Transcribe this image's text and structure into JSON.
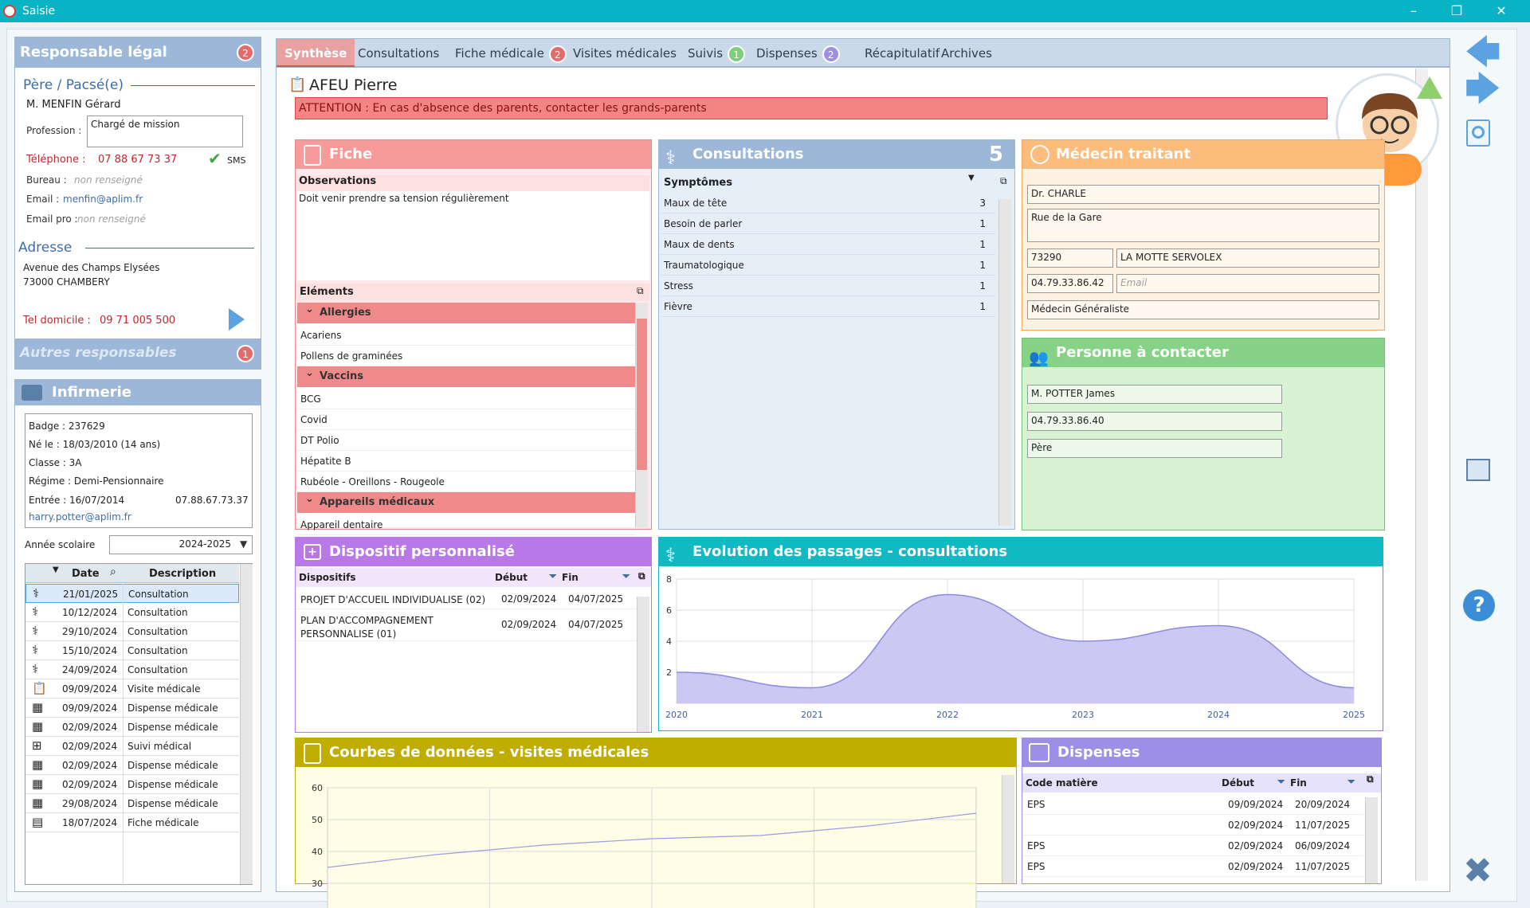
{
  "window": {
    "title": "Saisie",
    "minimize": "–",
    "restore": "❐",
    "close": "✕"
  },
  "tabs": [
    {
      "label": "Synthèse",
      "badge": null
    },
    {
      "label": "Consultations",
      "badge": null
    },
    {
      "label": "Fiche médicale",
      "badge": "2"
    },
    {
      "label": "Visites médicales",
      "badge": null
    },
    {
      "label": "Suivis",
      "badge": "1"
    },
    {
      "label": "Dispenses",
      "badge": "2"
    },
    {
      "label": "Récapitulatif",
      "badge": null
    },
    {
      "label": "Archives",
      "badge": null
    }
  ],
  "responsable": {
    "title": "Responsable légal",
    "badge": "2",
    "relation": "Père / Pacsé(e)",
    "name": "M. MENFIN Gérard",
    "profession_label": "Profession :",
    "profession": "Chargé de mission",
    "phone_label": "Téléphone :",
    "phone": "07 88 67 73 37",
    "sms": "SMS",
    "office_label": "Bureau :",
    "office": "non renseigné",
    "email_label": "Email :",
    "email": "menfin@aplim.fr",
    "email_pro_label": "Email pro :",
    "email_pro": "non renseigné",
    "address_title": "Adresse",
    "address_line1": "Avenue des Champs Elysées",
    "address_line2": "73000  CHAMBERY",
    "home_phone_label": "Tel domicile :",
    "home_phone": "09 71 005 500",
    "others_title": "Autres responsables",
    "others_badge": "1"
  },
  "infirmerie": {
    "title": "Infirmerie",
    "badge_label": "Badge :",
    "badge": "237629",
    "born_label": "Né le :",
    "born": "18/03/2010 (14 ans)",
    "class_label": "Classe :",
    "class": "3A",
    "regime_label": "Régime :",
    "regime": "Demi-Pensionnaire",
    "entry_label": "Entrée :",
    "entry": "16/07/2014",
    "phone": "07.88.67.73.37",
    "email": "harry.potter@aplim.fr",
    "year_label": "Année scolaire",
    "year": "2024-2025",
    "history_headers": {
      "date": "Date",
      "description": "Description"
    },
    "history": [
      {
        "icon": "stethoscope-icon",
        "date": "21/01/2025",
        "desc": "Consultation"
      },
      {
        "icon": "stethoscope-icon",
        "date": "10/12/2024",
        "desc": "Consultation"
      },
      {
        "icon": "stethoscope-icon",
        "date": "29/10/2024",
        "desc": "Consultation"
      },
      {
        "icon": "stethoscope-icon",
        "date": "15/10/2024",
        "desc": "Consultation"
      },
      {
        "icon": "stethoscope-icon",
        "date": "24/09/2024",
        "desc": "Consultation"
      },
      {
        "icon": "clipboard-icon",
        "date": "09/09/2024",
        "desc": "Visite médicale"
      },
      {
        "icon": "calendar-icon",
        "date": "09/09/2024",
        "desc": "Dispense médicale"
      },
      {
        "icon": "calendar-icon",
        "date": "02/09/2024",
        "desc": "Dispense médicale"
      },
      {
        "icon": "case-icon",
        "date": "02/09/2024",
        "desc": "Suivi médical"
      },
      {
        "icon": "calendar-icon",
        "date": "02/09/2024",
        "desc": "Dispense médicale"
      },
      {
        "icon": "calendar-icon",
        "date": "02/09/2024",
        "desc": "Dispense médicale"
      },
      {
        "icon": "calendar-icon",
        "date": "29/08/2024",
        "desc": "Dispense médicale"
      },
      {
        "icon": "document-icon",
        "date": "18/07/2024",
        "desc": "Fiche médicale"
      }
    ]
  },
  "student": {
    "name": "AFEU Pierre",
    "warning": "ATTENTION : En cas d'absence des parents, contacter les grands-parents"
  },
  "fiche": {
    "title": "Fiche",
    "observations_label": "Observations",
    "observations": "Doit venir prendre sa tension régulièrement",
    "elements_label": "Eléments",
    "groups": [
      {
        "name": "Allergies",
        "items": [
          "Acariens",
          "Pollens de graminées"
        ]
      },
      {
        "name": "Vaccins",
        "items": [
          "BCG",
          "Covid",
          "DT Polio",
          "Hépatite B",
          "Rubéole - Oreillons - Rougeole"
        ]
      },
      {
        "name": "Appareils médicaux",
        "items": [
          "Appareil dentaire"
        ]
      }
    ]
  },
  "consultations": {
    "title": "Consultations",
    "count": "5",
    "symptoms_label": "Symptômes",
    "symptoms": [
      {
        "name": "Maux de tête",
        "count": "3"
      },
      {
        "name": "Besoin de parler",
        "count": "1"
      },
      {
        "name": "Maux de dents",
        "count": "1"
      },
      {
        "name": "Traumatologique",
        "count": "1"
      },
      {
        "name": "Stress",
        "count": "1"
      },
      {
        "name": "Fièvre",
        "count": "1"
      }
    ]
  },
  "medecin": {
    "title": "Médecin traitant",
    "name": "Dr. CHARLE",
    "street": "Rue de la Gare",
    "zip": "73290",
    "city": "LA MOTTE SERVOLEX",
    "phone": "04.79.33.86.42",
    "email_placeholder": "Email",
    "specialty": "Médecin Généraliste"
  },
  "contact": {
    "title": "Personne à contacter",
    "name": "M. POTTER James",
    "phone": "04.79.33.86.40",
    "relation": "Père"
  },
  "dispositif": {
    "title": "Dispositif personnalisé",
    "headers": {
      "name": "Dispositifs",
      "start": "Début",
      "end": "Fin"
    },
    "rows": [
      {
        "name": "PROJET D'ACCUEIL INDIVIDUALISE (02)",
        "start": "02/09/2024",
        "end": "04/07/2025"
      },
      {
        "name": "PLAN D'ACCOMPAGNEMENT PERSONNALISE (01)",
        "start": "02/09/2024",
        "end": "04/07/2025"
      }
    ]
  },
  "evolution": {
    "title": "Evolution des passages - consultations"
  },
  "courbes": {
    "title": "Courbes de données - visites médicales"
  },
  "dispenses": {
    "title": "Dispenses",
    "headers": {
      "code": "Code matière",
      "start": "Début",
      "end": "Fin"
    },
    "rows": [
      {
        "code": "EPS",
        "start": "09/09/2024",
        "end": "20/09/2024"
      },
      {
        "code": "",
        "start": "02/09/2024",
        "end": "11/07/2025"
      },
      {
        "code": "EPS",
        "start": "02/09/2024",
        "end": "06/09/2024"
      },
      {
        "code": "EPS",
        "start": "02/09/2024",
        "end": "11/07/2025"
      }
    ]
  },
  "colors": {
    "accent": "#07b3c4",
    "fiche": "#f79a9a",
    "consult": "#9db7d9",
    "medecin": "#fbbc7c",
    "contact": "#86d286",
    "dispositif": "#b978e8",
    "evolution": "#11b9c3",
    "courbes": "#bfad00",
    "dispenses": "#9d8ee8"
  },
  "chart_data": [
    {
      "type": "area",
      "x": [
        2020,
        2021,
        2022,
        2023,
        2024,
        2025
      ],
      "series": [
        {
          "values": [
            2,
            1,
            7,
            4,
            5,
            1
          ]
        }
      ],
      "ylim": [
        0,
        8
      ],
      "yticks": [
        2,
        4,
        6,
        8
      ],
      "grid": true
    },
    {
      "type": "line",
      "x": [
        0,
        1,
        2,
        3,
        4,
        5,
        6
      ],
      "series": [
        {
          "values": [
            35,
            39,
            42,
            44,
            45,
            48,
            52
          ]
        }
      ],
      "ylim": [
        20,
        60
      ],
      "yticks": [
        30,
        40,
        50,
        60
      ],
      "grid": true
    }
  ]
}
